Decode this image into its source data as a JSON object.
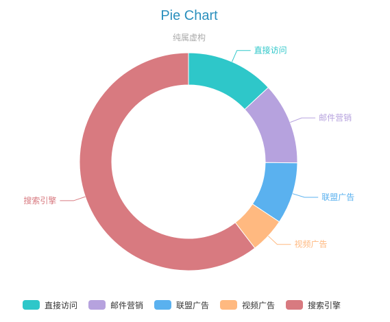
{
  "chart_data": {
    "type": "pie",
    "variant": "donut",
    "title": "Pie Chart",
    "subtitle": "纯属虚构",
    "categories": [
      "直接访问",
      "邮件营销",
      "联盟广告",
      "视频广告",
      "搜索引擎"
    ],
    "values": [
      335,
      310,
      234,
      135,
      1548
    ],
    "colors": [
      "#2ec7c9",
      "#b6a2de",
      "#5ab1ef",
      "#ffb980",
      "#d87a80"
    ],
    "legend": {
      "position": "bottom",
      "items": [
        "直接访问",
        "邮件营销",
        "联盟广告",
        "视频广告",
        "搜索引擎"
      ]
    }
  }
}
